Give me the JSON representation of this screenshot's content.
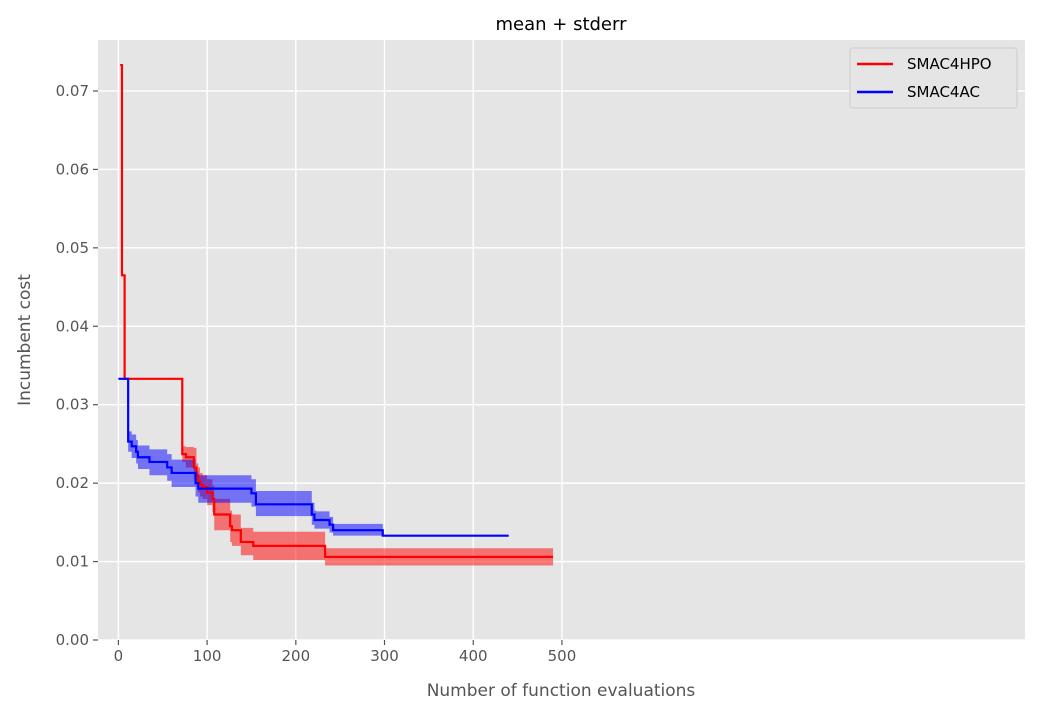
{
  "chart_data": {
    "type": "line",
    "title": "mean + stderr",
    "xlabel": "Number of function evaluations",
    "ylabel": "Incumbent cost",
    "xlim": [
      -23,
      1022
    ],
    "ylim": [
      0.0,
      0.0765
    ],
    "xticks": [
      0,
      100,
      200,
      300,
      400,
      500
    ],
    "yticks": [
      0.0,
      0.01,
      0.02,
      0.03,
      0.04,
      0.05,
      0.06,
      0.07
    ],
    "xtick_labels": [
      "0",
      "100",
      "200",
      "300",
      "400",
      "500"
    ],
    "ytick_labels": [
      "0.00",
      "0.01",
      "0.02",
      "0.03",
      "0.04",
      "0.05",
      "0.06",
      "0.07"
    ],
    "grid": true,
    "legend_position": "top-right",
    "background_color": "#e5e5e5",
    "series": [
      {
        "name": "SMAC4HPO",
        "color": "#ff0000",
        "step": true,
        "x": [
          2,
          4,
          7,
          72,
          76,
          85,
          88,
          90,
          92,
          95,
          100,
          106,
          108,
          126,
          128,
          138,
          152,
          233,
          490
        ],
        "y": [
          0.0733,
          0.0465,
          0.0333,
          0.0237,
          0.0233,
          0.022,
          0.021,
          0.0203,
          0.0198,
          0.0195,
          0.0188,
          0.018,
          0.016,
          0.0145,
          0.014,
          0.0125,
          0.012,
          0.0106,
          0.0106
        ],
        "lower": [
          0.0733,
          0.0465,
          0.0333,
          0.0227,
          0.022,
          0.0205,
          0.0195,
          0.0188,
          0.0183,
          0.018,
          0.0172,
          0.0163,
          0.014,
          0.0125,
          0.012,
          0.0108,
          0.0102,
          0.0095,
          0.0095
        ],
        "upper": [
          0.0733,
          0.0465,
          0.0333,
          0.0247,
          0.0246,
          0.0245,
          0.0225,
          0.022,
          0.0213,
          0.021,
          0.0205,
          0.0197,
          0.018,
          0.0165,
          0.016,
          0.0143,
          0.0138,
          0.0117,
          0.0117
        ]
      },
      {
        "name": "SMAC4AC",
        "color": "#0000ff",
        "step": true,
        "x": [
          0,
          11,
          15,
          20,
          22,
          35,
          55,
          60,
          87,
          90,
          150,
          155,
          218,
          221,
          223,
          238,
          242,
          298,
          440
        ],
        "y": [
          0.0333,
          0.0253,
          0.0247,
          0.024,
          0.0233,
          0.0227,
          0.022,
          0.0213,
          0.02,
          0.0193,
          0.0187,
          0.0173,
          0.016,
          0.0153,
          0.0153,
          0.0147,
          0.014,
          0.0133,
          0.0133
        ],
        "lower": [
          0.0333,
          0.024,
          0.0232,
          0.0225,
          0.0218,
          0.021,
          0.0203,
          0.0195,
          0.0183,
          0.0175,
          0.017,
          0.0158,
          0.0147,
          0.0142,
          0.0142,
          0.0137,
          0.0133,
          0.0133,
          0.0133
        ],
        "upper": [
          0.0333,
          0.0266,
          0.0262,
          0.0255,
          0.0248,
          0.0243,
          0.0237,
          0.023,
          0.0215,
          0.021,
          0.0205,
          0.019,
          0.0175,
          0.0165,
          0.0164,
          0.0157,
          0.0148,
          0.0133,
          0.0133
        ]
      }
    ]
  }
}
